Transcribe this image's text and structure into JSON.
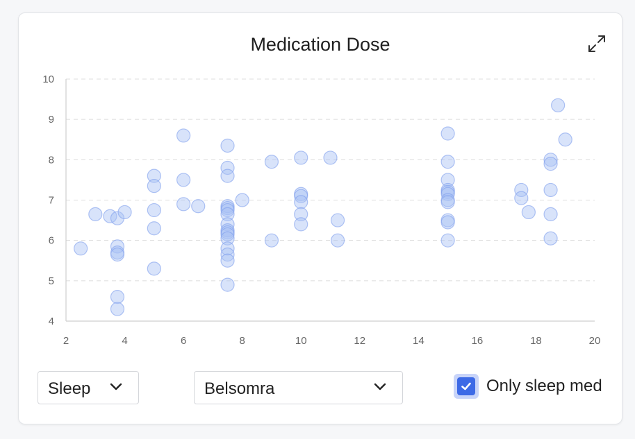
{
  "chart_data": {
    "type": "scatter",
    "title": "Medication Dose",
    "xlabel": "",
    "ylabel": "",
    "xlim": [
      2,
      20
    ],
    "ylim": [
      4,
      10
    ],
    "xticks": [
      2,
      4,
      6,
      8,
      10,
      12,
      14,
      16,
      18,
      20
    ],
    "yticks": [
      4,
      5,
      6,
      7,
      8,
      9,
      10
    ],
    "grid": true,
    "legend": "none",
    "point_color": "#a9c0f5",
    "point_stroke": "#7f9fed",
    "points": [
      [
        2.5,
        5.8
      ],
      [
        3.0,
        6.65
      ],
      [
        3.5,
        6.6
      ],
      [
        3.75,
        6.55
      ],
      [
        4.0,
        6.7
      ],
      [
        3.75,
        5.85
      ],
      [
        3.75,
        5.7
      ],
      [
        3.75,
        5.65
      ],
      [
        3.75,
        4.6
      ],
      [
        3.75,
        4.3
      ],
      [
        5.0,
        7.6
      ],
      [
        5.0,
        7.35
      ],
      [
        5.0,
        6.75
      ],
      [
        5.0,
        6.3
      ],
      [
        5.0,
        5.3
      ],
      [
        6.0,
        8.6
      ],
      [
        6.0,
        7.5
      ],
      [
        6.0,
        6.9
      ],
      [
        6.5,
        6.85
      ],
      [
        7.5,
        8.35
      ],
      [
        7.5,
        7.8
      ],
      [
        7.5,
        7.6
      ],
      [
        7.5,
        6.85
      ],
      [
        7.5,
        6.8
      ],
      [
        7.5,
        6.75
      ],
      [
        7.5,
        6.65
      ],
      [
        7.5,
        6.4
      ],
      [
        7.5,
        6.25
      ],
      [
        7.5,
        6.2
      ],
      [
        7.5,
        6.15
      ],
      [
        7.5,
        6.05
      ],
      [
        7.5,
        5.8
      ],
      [
        7.5,
        5.65
      ],
      [
        7.5,
        5.5
      ],
      [
        7.5,
        4.9
      ],
      [
        8.0,
        7.0
      ],
      [
        9.0,
        7.95
      ],
      [
        9.0,
        6.0
      ],
      [
        10.0,
        8.05
      ],
      [
        10.0,
        7.15
      ],
      [
        10.0,
        7.1
      ],
      [
        10.0,
        6.95
      ],
      [
        10.0,
        6.65
      ],
      [
        10.0,
        6.4
      ],
      [
        11.0,
        8.05
      ],
      [
        11.25,
        6.5
      ],
      [
        11.25,
        6.0
      ],
      [
        15.0,
        8.65
      ],
      [
        15.0,
        7.95
      ],
      [
        15.0,
        7.5
      ],
      [
        15.0,
        7.25
      ],
      [
        15.0,
        7.2
      ],
      [
        15.0,
        7.15
      ],
      [
        15.0,
        7.0
      ],
      [
        15.0,
        6.95
      ],
      [
        15.0,
        6.5
      ],
      [
        15.0,
        6.45
      ],
      [
        15.0,
        6.0
      ],
      [
        17.5,
        7.25
      ],
      [
        17.5,
        7.05
      ],
      [
        17.75,
        6.7
      ],
      [
        18.5,
        8.0
      ],
      [
        18.5,
        7.9
      ],
      [
        18.5,
        7.25
      ],
      [
        18.5,
        6.65
      ],
      [
        18.5,
        6.05
      ],
      [
        18.75,
        9.35
      ],
      [
        19.0,
        8.5
      ]
    ]
  },
  "controls": {
    "category_select": {
      "value": "Sleep"
    },
    "medication_select": {
      "value": "Belsomra"
    },
    "only_sleep_checkbox": {
      "label": "Only sleep med",
      "checked": true
    }
  },
  "icons": {
    "expand": "expand-icon",
    "chevron": "chevron-down-icon",
    "check": "check-icon"
  },
  "colors": {
    "accent": "#3d6ae6",
    "grid": "#dcdcdc"
  }
}
